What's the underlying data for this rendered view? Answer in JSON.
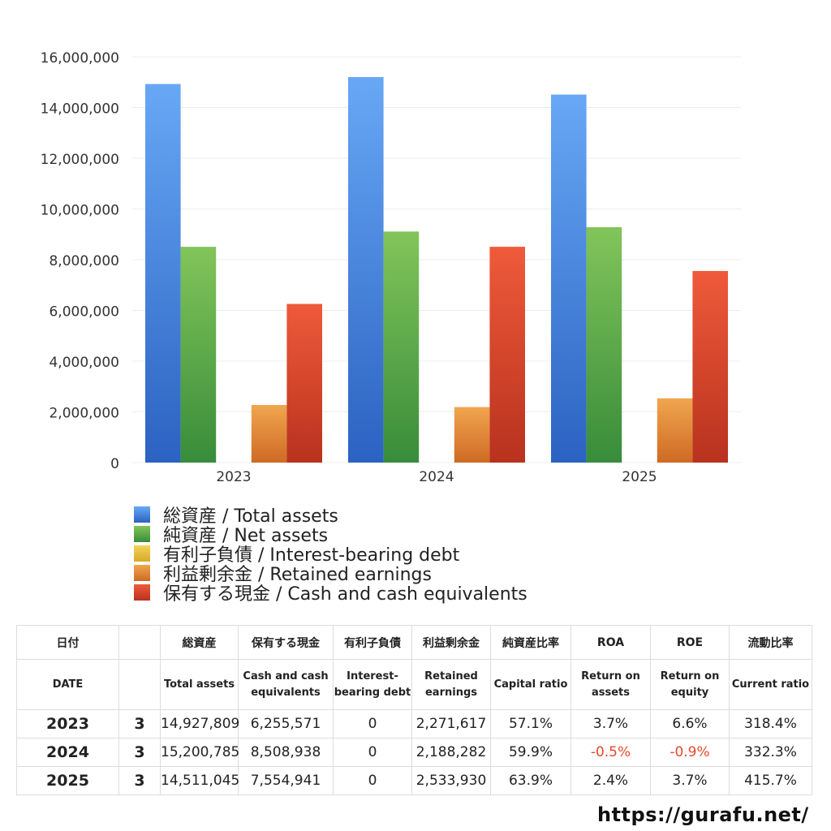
{
  "chart_data": {
    "type": "bar",
    "categories": [
      "2023",
      "2024",
      "2025"
    ],
    "ylim": [
      0,
      16000000
    ],
    "yticks": [
      "0",
      "2,000,000",
      "4,000,000",
      "6,000,000",
      "8,000,000",
      "10,000,000",
      "12,000,000",
      "14,000,000",
      "16,000,000"
    ],
    "grid": true,
    "legend_position": "bottom-left",
    "series": [
      {
        "name": "総資産 / Total assets",
        "values": [
          14927809,
          15200785,
          14511045
        ],
        "color_top": "#67a8f5",
        "color_bottom": "#2c62c2"
      },
      {
        "name": "純資産 / Net assets",
        "values": [
          8508000,
          9110000,
          9280000
        ],
        "color_top": "#82c55a",
        "color_bottom": "#388c3a"
      },
      {
        "name": "有利子負債 / Interest-bearing debt",
        "values": [
          0,
          0,
          0
        ],
        "color_top": "#f2d35a",
        "color_bottom": "#d9a926"
      },
      {
        "name": "利益剰余金 / Retained earnings",
        "values": [
          2271617,
          2188282,
          2533930
        ],
        "color_top": "#f0a64e",
        "color_bottom": "#cf6a24"
      },
      {
        "name": "保有する現金 /  Cash and cash equivalents",
        "values": [
          6255571,
          8508938,
          7554941
        ],
        "color_top": "#ef5a3a",
        "color_bottom": "#b8321e"
      }
    ]
  },
  "table": {
    "headers_jp": [
      "日付",
      "",
      "総資産",
      "保有する現金",
      "有利子負債",
      "利益剰余金",
      "純資産比率",
      "ROA",
      "ROE",
      "流動比率"
    ],
    "headers_en": [
      "DATE",
      "",
      "Total assets",
      "Cash and cash equivalents",
      "Interest-bearing debt",
      "Retained earnings",
      "Capital ratio",
      "Return on assets",
      "Return on equity",
      "Current ratio"
    ],
    "rows": [
      {
        "year": "2023",
        "month": "3",
        "total_assets": "14,927,809",
        "cash": "6,255,571",
        "debt": "0",
        "retained": "2,271,617",
        "capital_ratio": "57.1%",
        "roa": "3.7%",
        "roe": "6.6%",
        "current_ratio": "318.4%"
      },
      {
        "year": "2024",
        "month": "3",
        "total_assets": "15,200,785",
        "cash": "8,508,938",
        "debt": "0",
        "retained": "2,188,282",
        "capital_ratio": "59.9%",
        "roa": "-0.5%",
        "roe": "-0.9%",
        "current_ratio": "332.3%"
      },
      {
        "year": "2025",
        "month": "3",
        "total_assets": "14,511,045",
        "cash": "7,554,941",
        "debt": "0",
        "retained": "2,533,930",
        "capital_ratio": "63.9%",
        "roa": "2.4%",
        "roe": "3.7%",
        "current_ratio": "415.7%"
      }
    ],
    "negative_color": "#e04a2c"
  },
  "footer": {
    "site": "https://gurafu.net/"
  }
}
